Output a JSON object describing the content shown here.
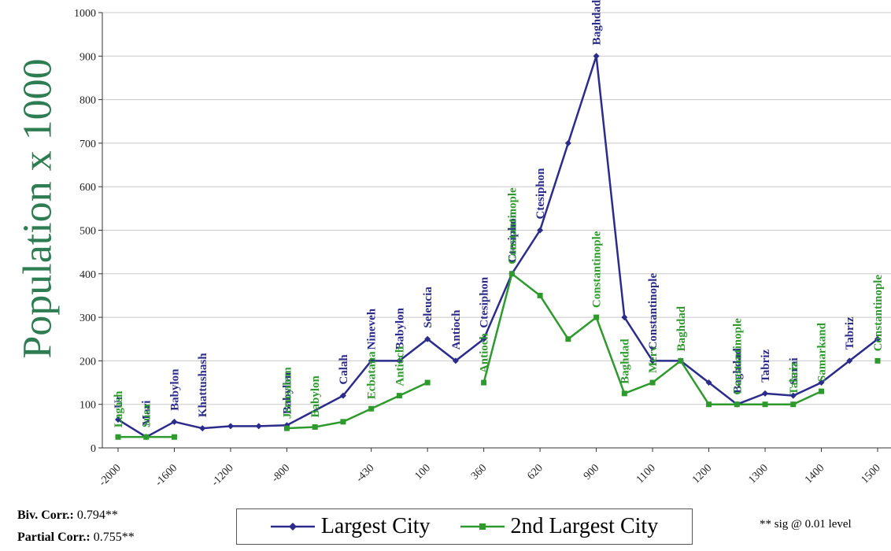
{
  "chart_data": {
    "type": "line",
    "ylabel": "Population x 1000",
    "ylim": [
      0,
      1000
    ],
    "yticks": [
      0,
      100,
      200,
      300,
      400,
      500,
      600,
      700,
      800,
      900,
      1000
    ],
    "grid": true,
    "categories": [
      "-2000",
      "-1600",
      "-1200",
      "-800",
      "-430",
      "100",
      "360",
      "620",
      "900",
      "1100",
      "1200",
      "1300",
      "1400",
      "1500"
    ],
    "series": [
      {
        "name": "Largest City",
        "color": "#2b2b8c",
        "marker": "diamond",
        "points": [
          {
            "x": "-2000",
            "y": 65,
            "label": "Ur"
          },
          {
            "x": "-1800",
            "y": 25,
            "label": "Mari"
          },
          {
            "x": "-1600",
            "y": 60,
            "label": "Babylon"
          },
          {
            "x": "-1400",
            "y": 45,
            "label": "Khattushash"
          },
          {
            "x": "-1200",
            "y": 50,
            "label": ""
          },
          {
            "x": "-1000",
            "y": 50,
            "label": ""
          },
          {
            "x": "-800",
            "y": 52,
            "label": "Babylon"
          },
          {
            "x": "-650",
            "y": 120,
            "label": "Calah"
          },
          {
            "x": "-430",
            "y": 200,
            "label": "Nineveh"
          },
          {
            "x": "-200",
            "y": 200,
            "label": "Babylon"
          },
          {
            "x": "100",
            "y": 250,
            "label": "Seleucia"
          },
          {
            "x": "200",
            "y": 200,
            "label": "Antioch"
          },
          {
            "x": "360",
            "y": 250,
            "label": "Ctesiphon"
          },
          {
            "x": "500",
            "y": 400,
            "label": "Ctesiphon"
          },
          {
            "x": "620",
            "y": 500,
            "label": "Ctesiphon"
          },
          {
            "x": "750",
            "y": 700,
            "label": ""
          },
          {
            "x": "900",
            "y": 900,
            "label": "Baghdad"
          },
          {
            "x": "1000",
            "y": 300,
            "label": ""
          },
          {
            "x": "1100",
            "y": 200,
            "label": "Constantinople"
          },
          {
            "x": "1150",
            "y": 200,
            "label": ""
          },
          {
            "x": "1200",
            "y": 150,
            "label": ""
          },
          {
            "x": "1250",
            "y": 100,
            "label": "Baghdad"
          },
          {
            "x": "1300",
            "y": 125,
            "label": "Tabriz"
          },
          {
            "x": "1350",
            "y": 120,
            "label": "Sarai"
          },
          {
            "x": "1400",
            "y": 150,
            "label": ""
          },
          {
            "x": "1450",
            "y": 200,
            "label": "Tabriz"
          },
          {
            "x": "1500",
            "y": 250,
            "label": ""
          }
        ]
      },
      {
        "name": "2nd Largest City",
        "color": "#2e9a2e",
        "marker": "square",
        "segments": [
          [
            {
              "x": "-2000",
              "y": 25,
              "label": "Lagash"
            },
            {
              "x": "-1800",
              "y": 25,
              "label": "Susa"
            },
            {
              "x": "-1600",
              "y": 25,
              "label": ""
            }
          ],
          [
            {
              "x": "-800",
              "y": 45,
              "label": "Jerusalem"
            },
            {
              "x": "-700",
              "y": 48,
              "label": "Babylon"
            },
            {
              "x": "-650",
              "y": 60,
              "label": ""
            },
            {
              "x": "-430",
              "y": 90,
              "label": "Ecbatana"
            },
            {
              "x": "-200",
              "y": 120,
              "label": "Antioch"
            },
            {
              "x": "100",
              "y": 150,
              "label": ""
            }
          ],
          [
            {
              "x": "360",
              "y": 150,
              "label": "Antioch"
            },
            {
              "x": "500",
              "y": 400,
              "label": "Constantinople"
            },
            {
              "x": "620",
              "y": 350,
              "label": ""
            },
            {
              "x": "750",
              "y": 250,
              "label": ""
            },
            {
              "x": "900",
              "y": 300,
              "label": "Constantinople"
            },
            {
              "x": "1000",
              "y": 125,
              "label": "Baghdad"
            },
            {
              "x": "1100",
              "y": 150,
              "label": "Merv"
            },
            {
              "x": "1150",
              "y": 200,
              "label": "Baghdad"
            },
            {
              "x": "1200",
              "y": 100,
              "label": ""
            },
            {
              "x": "1250",
              "y": 100,
              "label": "Constantinople"
            },
            {
              "x": "1300",
              "y": 100,
              "label": ""
            },
            {
              "x": "1350",
              "y": 100,
              "label": "Tabriz"
            },
            {
              "x": "1400",
              "y": 130,
              "label": "Samarkand"
            }
          ],
          [
            {
              "x": "1500",
              "y": 200,
              "label": "Constantinople"
            }
          ]
        ]
      }
    ]
  },
  "stats": {
    "biv_label": "Biv. Corr.:",
    "biv_value": "0.794**",
    "partial_label": "Partial Corr.:",
    "partial_value": "0.755**"
  },
  "legend": {
    "largest": "Largest City",
    "second": "2nd Largest City"
  },
  "footnote": "** sig @ 0.01 level"
}
